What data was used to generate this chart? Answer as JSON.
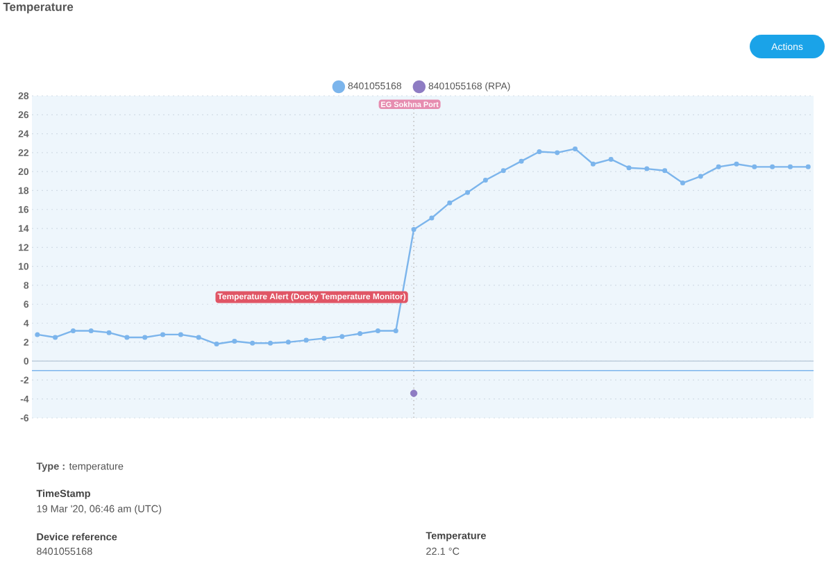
{
  "chart_data": {
    "type": "line",
    "title": "Temperature",
    "categories": [
      null,
      null,
      null,
      null,
      null,
      null,
      null,
      null,
      null,
      null,
      null,
      null,
      null,
      null,
      null,
      null,
      null,
      null,
      null,
      null,
      null,
      null,
      null,
      null,
      null,
      null,
      null,
      null,
      null,
      null,
      null,
      null,
      null,
      null,
      null,
      null,
      null,
      null,
      null,
      null,
      null,
      null,
      null,
      null
    ],
    "series": [
      {
        "name": "8401055168",
        "color": "#7cb5ec",
        "values": [
          2.8,
          2.5,
          3.2,
          3.2,
          3.0,
          2.5,
          2.5,
          2.8,
          2.8,
          2.5,
          1.8,
          2.1,
          1.9,
          1.9,
          2.0,
          2.2,
          2.4,
          2.6,
          2.9,
          3.2,
          3.2,
          13.9,
          15.1,
          16.7,
          17.8,
          19.1,
          20.1,
          21.1,
          22.1,
          22.0,
          22.4,
          20.8,
          21.3,
          20.4,
          20.3,
          20.1,
          18.8,
          19.5,
          20.5,
          20.8,
          20.5,
          20.5,
          20.5,
          20.5
        ]
      },
      {
        "name": "8401055168 (RPA)",
        "type": "scatter",
        "color": "#8e7cc3",
        "values": [
          null,
          null,
          null,
          null,
          null,
          null,
          null,
          null,
          null,
          null,
          null,
          null,
          null,
          null,
          null,
          null,
          null,
          null,
          null,
          null,
          null,
          -3.4,
          null,
          null,
          null,
          null,
          null,
          null,
          null,
          null,
          null,
          null,
          null,
          null,
          null,
          null,
          null,
          null,
          null,
          null,
          null,
          null,
          null,
          null
        ]
      }
    ],
    "ylim": [
      -6,
      28
    ],
    "yticks": [
      -6,
      -4,
      -2,
      0,
      2,
      4,
      6,
      8,
      10,
      12,
      14,
      16,
      18,
      20,
      22,
      24,
      26,
      28
    ],
    "grid": "y",
    "legend": "top",
    "marker": "circle",
    "line_style": "solid",
    "ref_lines": [
      {
        "axis": "y",
        "value": 0,
        "color": "#c5d3e0"
      },
      {
        "axis": "y",
        "value": -1,
        "color": "#7cb5ec"
      }
    ],
    "annotations": [
      "Actions",
      "EG Sokhna Port",
      "Temperature Alert (Docky Temperature Monitor)",
      "**Type :** temperature",
      "TimeStamp",
      "19 Mar '20, 06:46 am (UTC)",
      "Device reference",
      "8401055168",
      "Temperature",
      "22.1 °C"
    ]
  }
}
